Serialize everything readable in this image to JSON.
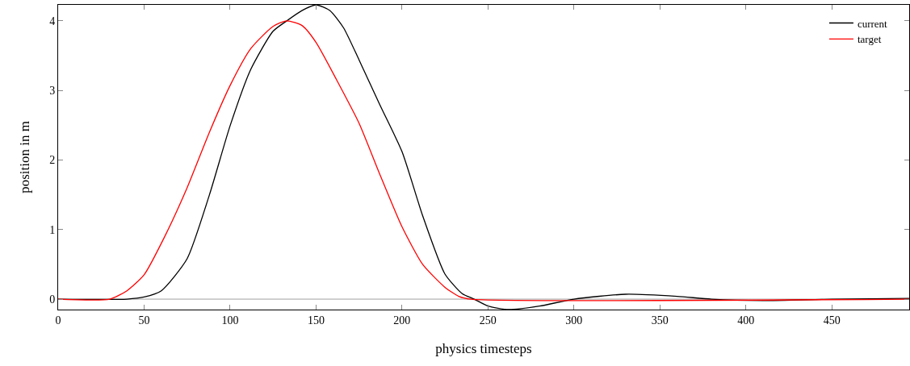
{
  "chart_data": {
    "type": "line",
    "xlabel": "physics timesteps",
    "ylabel": "position in m",
    "xlim": [
      0,
      495
    ],
    "ylim": [
      -0.15,
      4.23
    ],
    "xticks": [
      0,
      50,
      100,
      150,
      200,
      250,
      300,
      350,
      400,
      450
    ],
    "yticks": [
      0,
      1,
      2,
      3,
      4
    ],
    "grid": false,
    "legend": "top right",
    "marker": "none",
    "line_style": "solid",
    "ref_lines": [
      {
        "axis": "y",
        "value": 0,
        "color": "#a0a0a0"
      }
    ],
    "series": [
      {
        "name": "current",
        "color": "#000000",
        "x": [
          0,
          40,
          50,
          60,
          75,
          88,
          100,
          112,
          125,
          133,
          142,
          150,
          158,
          166,
          175,
          187,
          200,
          212,
          225,
          235,
          242,
          250,
          262,
          280,
          300,
          330,
          360,
          380,
          410,
          450,
          495
        ],
        "values": [
          0,
          0,
          0.03,
          0.12,
          0.58,
          1.5,
          2.49,
          3.3,
          3.85,
          4.0,
          4.15,
          4.23,
          4.15,
          3.9,
          3.44,
          2.8,
          2.12,
          1.2,
          0.36,
          0.08,
          0,
          -0.1,
          -0.15,
          -0.1,
          0,
          0.07,
          0.04,
          0,
          -0.02,
          0,
          0.01
        ]
      },
      {
        "name": "target",
        "color": "#ff0000",
        "x": [
          0,
          30,
          40,
          50,
          62,
          75,
          88,
          100,
          112,
          125,
          133,
          142,
          150,
          162,
          175,
          187,
          200,
          212,
          225,
          233,
          240,
          495
        ],
        "values": [
          0,
          0,
          0.12,
          0.35,
          0.9,
          1.6,
          2.4,
          3.07,
          3.6,
          3.92,
          4.0,
          3.93,
          3.69,
          3.15,
          2.53,
          1.8,
          1.04,
          0.5,
          0.17,
          0.04,
          0,
          0
        ]
      }
    ]
  }
}
